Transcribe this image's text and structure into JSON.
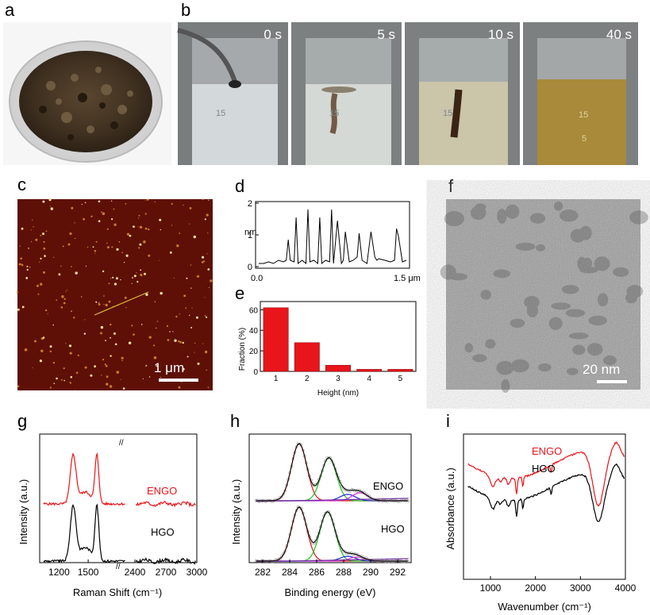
{
  "panels": {
    "a": "a",
    "b": "b",
    "c": "c",
    "d": "d",
    "e": "e",
    "f": "f",
    "g": "g",
    "h": "h",
    "i": "i"
  },
  "photos_b": {
    "times": [
      "0 s",
      "5 s",
      "10 s",
      "40 s"
    ],
    "beaker_mark": "15",
    "beaker_mark_low": "5"
  },
  "afm": {
    "scale_bar": "1 μm"
  },
  "tem": {
    "scale_bar": "20 nm"
  },
  "colors": {
    "engo": "#e8151b",
    "hgo": "#000000",
    "bar": "#e8151b",
    "green": "#20c020",
    "blue": "#2030d0",
    "magenta": "#e030e0",
    "purple": "#7030a0"
  },
  "chart_data": [
    {
      "id": "d",
      "type": "line",
      "ylabel": "nm",
      "x_tick_labels": [
        "0.0",
        "1.5 μm"
      ],
      "y_ticks": [
        0,
        1,
        2
      ],
      "xlim": [
        0,
        1.5
      ],
      "ylim": [
        0,
        2
      ],
      "x": [
        0.0,
        0.05,
        0.1,
        0.15,
        0.2,
        0.25,
        0.28,
        0.3,
        0.32,
        0.36,
        0.38,
        0.4,
        0.44,
        0.48,
        0.5,
        0.52,
        0.56,
        0.6,
        0.62,
        0.64,
        0.68,
        0.72,
        0.74,
        0.76,
        0.8,
        0.84,
        0.86,
        0.88,
        0.92,
        0.96,
        1.0,
        1.02,
        1.05,
        1.1,
        1.14,
        1.18,
        1.2,
        1.22,
        1.28,
        1.34,
        1.38,
        1.4,
        1.42,
        1.46,
        1.5
      ],
      "y": [
        0.1,
        0.1,
        0.15,
        0.1,
        0.2,
        0.15,
        0.2,
        0.85,
        0.2,
        0.15,
        1.55,
        0.1,
        0.2,
        0.1,
        1.8,
        0.15,
        0.2,
        0.1,
        1.55,
        0.1,
        0.2,
        0.15,
        1.8,
        0.1,
        1.45,
        0.1,
        0.2,
        1.1,
        0.15,
        0.2,
        0.3,
        1.05,
        0.2,
        0.1,
        1.1,
        0.3,
        0.2,
        0.25,
        0.2,
        0.15,
        0.2,
        1.2,
        0.95,
        0.15,
        0.2
      ]
    },
    {
      "id": "e",
      "type": "bar",
      "xlabel": "Height (nm)",
      "ylabel": "Fraction (%)",
      "categories": [
        "1",
        "2",
        "3",
        "4",
        "5"
      ],
      "values": [
        62,
        28,
        6,
        2,
        2
      ],
      "y_ticks": [
        0,
        20,
        40,
        60
      ],
      "ylim": [
        0,
        68
      ]
    },
    {
      "id": "g",
      "type": "line",
      "xlabel": "Raman Shift (cm⁻¹)",
      "ylabel": "Intensity (a.u.)",
      "x_tick_labels": [
        "1200",
        "1500",
        "2400",
        "2700",
        "3000"
      ],
      "axis_break": "//",
      "series": [
        {
          "name": "ENGO",
          "peaks": [
            1345,
            1590
          ]
        },
        {
          "name": "HGO",
          "peaks": [
            1345,
            1590
          ]
        }
      ]
    },
    {
      "id": "h",
      "type": "line",
      "xlabel": "Binding energy (eV)",
      "ylabel": "Intensity (a.u.)",
      "x_tick_labels": [
        "282",
        "284",
        "286",
        "288",
        "290",
        "292"
      ],
      "xlim": [
        281,
        293
      ],
      "series": [
        {
          "name": "ENGO",
          "components": [
            284.7,
            286.9,
            288.3,
            289.2
          ]
        },
        {
          "name": "HGO",
          "components": [
            284.7,
            286.8,
            288.3,
            289.0
          ]
        }
      ]
    },
    {
      "id": "i",
      "type": "line",
      "xlabel": "Wavenumber (cm⁻¹)",
      "ylabel": "Absorbance (a.u.)",
      "x_tick_labels": [
        "1000",
        "2000",
        "3000",
        "4000"
      ],
      "xlim": [
        400,
        4000
      ],
      "series": [
        {
          "name": "ENGO"
        },
        {
          "name": "HGO"
        }
      ]
    }
  ]
}
